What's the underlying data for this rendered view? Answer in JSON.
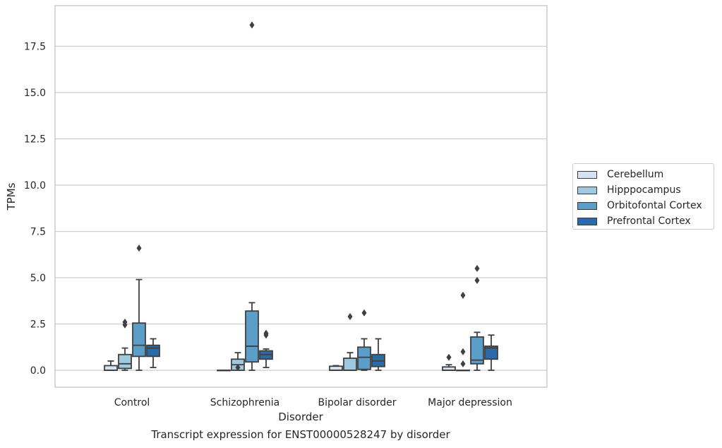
{
  "chart_data": {
    "type": "box",
    "title": "Transcript expression for ENST00000528247 by disorder",
    "xlabel": "Disorder",
    "ylabel": "TPMs",
    "ylim": [
      -0.9,
      19.6
    ],
    "yticks": [
      "0.0",
      "2.5",
      "5.0",
      "7.5",
      "10.0",
      "12.5",
      "15.0",
      "17.5"
    ],
    "ytick_values": [
      0,
      2.5,
      5,
      7.5,
      10,
      12.5,
      15,
      17.5
    ],
    "grid": true,
    "legend_position": "right",
    "categories": [
      "Control",
      "Schizophrenia",
      "Bipolar disorder",
      "Major depression"
    ],
    "series": [
      {
        "name": "Cerebellum",
        "color": "#d5e2f0",
        "boxes": [
          {
            "q1": 0.0,
            "median": 0.0,
            "q3": 0.25,
            "whislo": 0.0,
            "whishi": 0.5,
            "fliers": []
          },
          {
            "q1": 0.0,
            "median": 0.0,
            "q3": 0.0,
            "whislo": 0.0,
            "whishi": 0.0,
            "fliers": []
          },
          {
            "q1": 0.0,
            "median": 0.0,
            "q3": 0.22,
            "whislo": 0.0,
            "whishi": 0.25,
            "fliers": []
          },
          {
            "q1": 0.0,
            "median": 0.0,
            "q3": 0.18,
            "whislo": 0.0,
            "whishi": 0.3,
            "fliers": [
              0.7
            ]
          }
        ]
      },
      {
        "name": "Hipppocampus",
        "color": "#9fc9df",
        "boxes": [
          {
            "q1": 0.1,
            "median": 0.35,
            "q3": 0.85,
            "whislo": 0.0,
            "whishi": 1.2,
            "fliers": [
              2.45,
              2.6
            ]
          },
          {
            "q1": 0.0,
            "median": 0.3,
            "q3": 0.6,
            "whislo": 0.0,
            "whishi": 0.95,
            "fliers": [
              0.15
            ]
          },
          {
            "q1": 0.0,
            "median": 0.0,
            "q3": 0.65,
            "whislo": 0.0,
            "whishi": 0.95,
            "fliers": [
              2.9
            ]
          },
          {
            "q1": 0.0,
            "median": 0.0,
            "q3": 0.0,
            "whislo": 0.0,
            "whishi": 0.0,
            "fliers": [
              0.35,
              1.0,
              4.05
            ]
          }
        ]
      },
      {
        "name": "Orbitofontal Cortex",
        "color": "#5b9ec9",
        "boxes": [
          {
            "q1": 0.75,
            "median": 1.35,
            "q3": 2.55,
            "whislo": 0.0,
            "whishi": 4.9,
            "fliers": [
              6.6
            ]
          },
          {
            "q1": 0.45,
            "median": 1.3,
            "q3": 3.2,
            "whislo": 0.0,
            "whishi": 3.65,
            "fliers": [
              18.65
            ]
          },
          {
            "q1": 0.05,
            "median": 0.7,
            "q3": 1.25,
            "whislo": 0.0,
            "whishi": 1.7,
            "fliers": [
              3.1
            ]
          },
          {
            "q1": 0.35,
            "median": 0.55,
            "q3": 1.8,
            "whislo": 0.0,
            "whishi": 2.05,
            "fliers": [
              4.85,
              5.5
            ]
          }
        ]
      },
      {
        "name": "Prefrontal Cortex",
        "color": "#2a6aa9",
        "boxes": [
          {
            "q1": 0.75,
            "median": 1.2,
            "q3": 1.35,
            "whislo": 0.15,
            "whishi": 1.7,
            "fliers": []
          },
          {
            "q1": 0.6,
            "median": 0.85,
            "q3": 1.05,
            "whislo": 0.15,
            "whishi": 1.15,
            "fliers": [
              1.9,
              2.0
            ]
          },
          {
            "q1": 0.2,
            "median": 0.5,
            "q3": 0.85,
            "whislo": 0.0,
            "whishi": 1.7,
            "fliers": []
          },
          {
            "q1": 0.6,
            "median": 1.2,
            "q3": 1.3,
            "whislo": 0.0,
            "whishi": 1.9,
            "fliers": []
          }
        ]
      }
    ]
  }
}
